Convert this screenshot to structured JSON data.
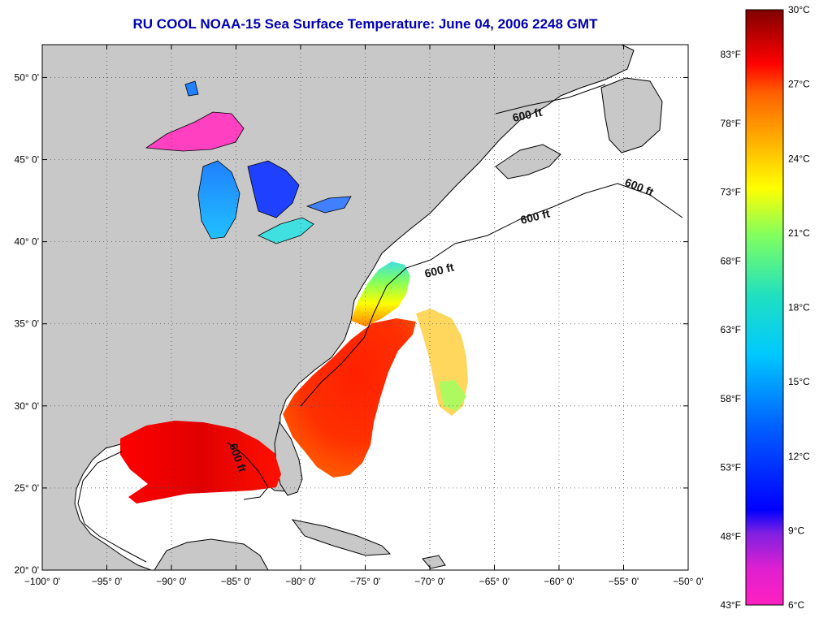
{
  "title": "RU COOL  NOAA-15  Sea Surface Temperature:  June 04, 2006 2248 GMT",
  "map": {
    "lon_range": [
      -100,
      -50
    ],
    "lat_range": [
      20,
      52
    ],
    "lon_ticks": [
      -100,
      -95,
      -90,
      -85,
      -80,
      -75,
      -70,
      -65,
      -60,
      -55,
      -50
    ],
    "lon_labels": [
      "−100° 0'",
      "−95° 0'",
      "−90° 0'",
      "−85° 0'",
      "−80° 0'",
      "−75° 0'",
      "−70° 0'",
      "−65° 0'",
      "−60° 0'",
      "−55° 0'",
      "−50° 0'"
    ],
    "lat_ticks": [
      20,
      25,
      30,
      35,
      40,
      45,
      50
    ],
    "lat_labels": [
      "20° 0'",
      "25° 0'",
      "30° 0'",
      "35° 0'",
      "40° 0'",
      "45° 0'",
      "50° 0'"
    ],
    "grid": "dotted",
    "land_color": "#c8c8c8",
    "ocean_color": "#ffffff",
    "contour_labels": [
      "600 ft",
      "600 ft",
      "600 ft",
      "600 ft",
      "600 ft"
    ]
  },
  "colorbar": {
    "fahrenheit_labels": [
      "43°F",
      "48°F",
      "53°F",
      "58°F",
      "63°F",
      "68°F",
      "73°F",
      "78°F",
      "83°F"
    ],
    "celsius_labels": [
      "6°C",
      "9°C",
      "12°C",
      "15°C",
      "18°C",
      "21°C",
      "24°C",
      "27°C",
      "30°C"
    ],
    "colors": [
      "#ff20c0",
      "#c020e0",
      "#0000ff",
      "#0080ff",
      "#00e0e0",
      "#60ff80",
      "#ffff00",
      "#ff8000",
      "#ff0000",
      "#800000"
    ]
  }
}
